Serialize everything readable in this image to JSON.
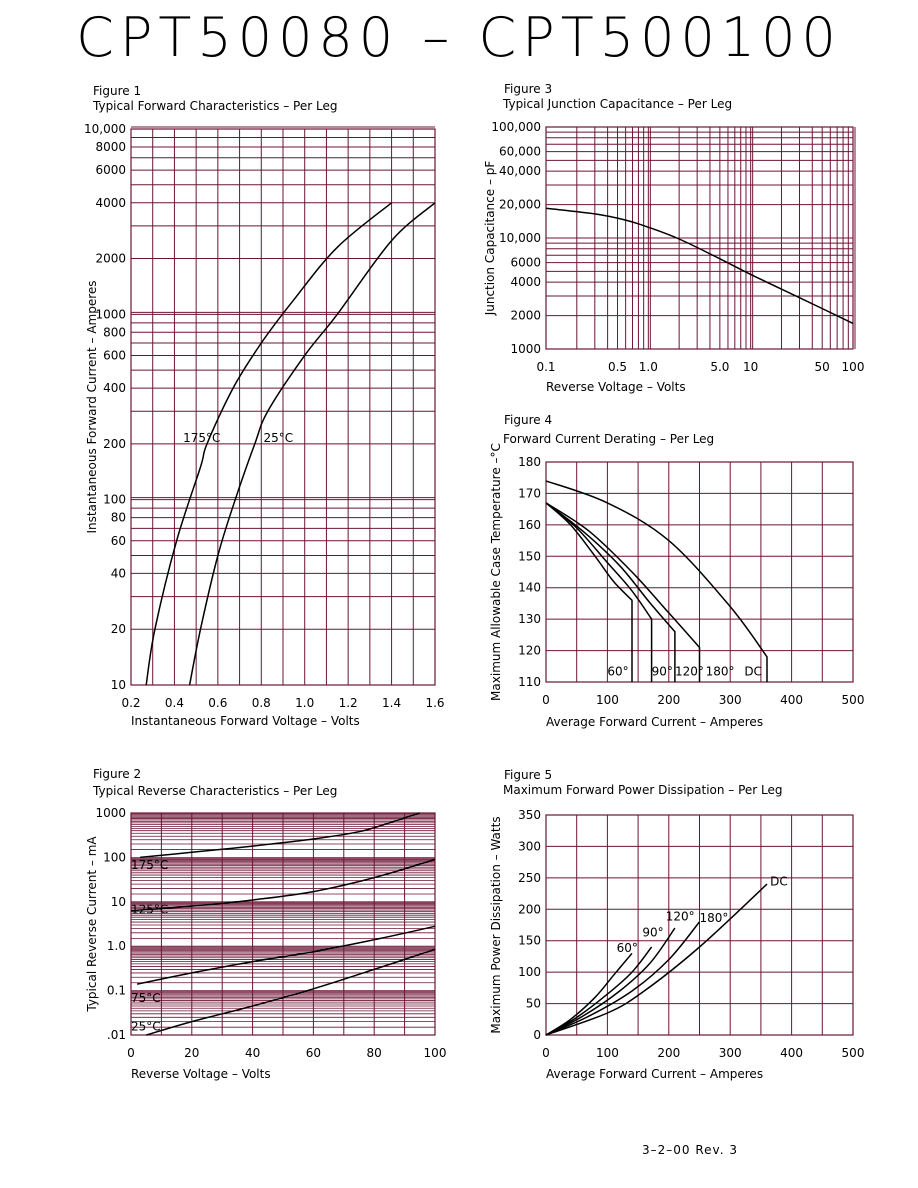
{
  "page_title": "CPT50080  –  CPT500100",
  "footer": "3–2–00   Rev. 3",
  "chart_data": [
    {
      "id": "fig1",
      "type": "line",
      "figure_label": "Figure 1",
      "title": "Typical Forward Characteristics – Per Leg",
      "xlabel": "Instantaneous Forward Voltage – Volts",
      "ylabel": "Instantaneous Forward Current – Amperes",
      "xlim": [
        0.2,
        1.6
      ],
      "ylim": [
        10,
        10000
      ],
      "yscale": "log",
      "x_ticks": [
        "0.2",
        "0.4",
        "0.6",
        "0.8",
        "1.0",
        "1.2",
        "1.4",
        "1.6"
      ],
      "y_ticks": [
        "10",
        "20",
        "40",
        "60",
        "80",
        "100",
        "200",
        "400",
        "600",
        "800",
        "1000",
        "2000",
        "4000",
        "6000",
        "8000",
        "10,000"
      ],
      "series": [
        {
          "name": "175°C",
          "points": [
            [
              0.27,
              10
            ],
            [
              0.31,
              20
            ],
            [
              0.41,
              60
            ],
            [
              0.52,
              150
            ],
            [
              0.55,
              200
            ],
            [
              0.67,
              400
            ],
            [
              0.8,
              700
            ],
            [
              0.95,
              1200
            ],
            [
              1.15,
              2300
            ],
            [
              1.4,
              4000
            ]
          ]
        },
        {
          "name": "25°C",
          "points": [
            [
              0.47,
              10
            ],
            [
              0.52,
              20
            ],
            [
              0.6,
              50
            ],
            [
              0.68,
              100
            ],
            [
              0.77,
              200
            ],
            [
              0.83,
              300
            ],
            [
              1.0,
              600
            ],
            [
              1.15,
              1000
            ],
            [
              1.4,
              2500
            ],
            [
              1.6,
              4000
            ]
          ]
        }
      ],
      "annotations": [
        {
          "text": "175°C",
          "x": 0.44,
          "y": 205
        },
        {
          "text": "25°C",
          "x": 0.81,
          "y": 205
        }
      ]
    },
    {
      "id": "fig2",
      "type": "line",
      "figure_label": "Figure 2",
      "title": "Typical Reverse Characteristics – Per Leg",
      "xlabel": "Reverse Voltage – Volts",
      "ylabel": "Typical Reverse Current – mA",
      "xlim": [
        0,
        100
      ],
      "ylim": [
        0.01,
        1000
      ],
      "yscale": "log",
      "x_ticks": [
        "0",
        "20",
        "40",
        "60",
        "80",
        "100"
      ],
      "y_ticks": [
        ".01",
        "0.1",
        "1.0",
        "10",
        "100",
        "1000"
      ],
      "series": [
        {
          "name": "175°C",
          "points": [
            [
              3,
              100
            ],
            [
              20,
              130
            ],
            [
              40,
              180
            ],
            [
              60,
              260
            ],
            [
              75,
              380
            ],
            [
              85,
              600
            ],
            [
              95,
              1000
            ]
          ]
        },
        {
          "name": "125°C",
          "points": [
            [
              0,
              6.3
            ],
            [
              20,
              8
            ],
            [
              40,
              11
            ],
            [
              60,
              17
            ],
            [
              80,
              35
            ],
            [
              100,
              90
            ]
          ]
        },
        {
          "name": "75°C",
          "points": [
            [
              2,
              0.14
            ],
            [
              20,
              0.25
            ],
            [
              40,
              0.45
            ],
            [
              60,
              0.75
            ],
            [
              80,
              1.4
            ],
            [
              100,
              2.8
            ]
          ]
        },
        {
          "name": "25°C",
          "points": [
            [
              5,
              0.01
            ],
            [
              20,
              0.02
            ],
            [
              40,
              0.045
            ],
            [
              60,
              0.11
            ],
            [
              80,
              0.3
            ],
            [
              100,
              0.85
            ]
          ]
        }
      ],
      "annotations": [
        {
          "text": "175°C",
          "x": 0,
          "y": 55
        },
        {
          "text": "125°C",
          "x": 0,
          "y": 5.5
        },
        {
          "text": "75°C",
          "x": 0,
          "y": 0.055
        },
        {
          "text": "25°C",
          "x": 0,
          "y": 0.0125
        }
      ]
    },
    {
      "id": "fig3",
      "type": "line",
      "figure_label": "Figure 3",
      "title": "Typical Junction Capacitance – Per Leg",
      "xlabel": "Reverse Voltage – Volts",
      "ylabel": "Junction Capacitance – pF",
      "xlim": [
        0.1,
        100
      ],
      "ylim": [
        1000,
        100000
      ],
      "xscale": "log",
      "yscale": "log",
      "x_ticks": [
        "0.1",
        "0.5",
        "1.0",
        "5.0",
        "10",
        "50",
        "100"
      ],
      "y_ticks": [
        "1000",
        "2000",
        "4000",
        "6000",
        "10,000",
        "20,000",
        "40,000",
        "60,000",
        "100,000"
      ],
      "series": [
        {
          "name": "",
          "points": [
            [
              0.1,
              18500
            ],
            [
              0.3,
              16500
            ],
            [
              0.6,
              14500
            ],
            [
              1.0,
              12500
            ],
            [
              2.0,
              9800
            ],
            [
              5.0,
              6500
            ],
            [
              10,
              4700
            ],
            [
              30,
              2900
            ],
            [
              100,
              1700
            ]
          ]
        }
      ]
    },
    {
      "id": "fig4",
      "type": "line",
      "figure_label": "Figure 4",
      "title": "Forward Current Derating – Per Leg",
      "xlabel": "Average Forward Current – Amperes",
      "ylabel": "Maximum Allowable Case Temperature –°C",
      "xlim": [
        0,
        500
      ],
      "ylim": [
        110,
        180
      ],
      "x_ticks": [
        "0",
        "100",
        "200",
        "300",
        "400",
        "500"
      ],
      "y_ticks": [
        "110",
        "120",
        "130",
        "140",
        "150",
        "160",
        "170",
        "180"
      ],
      "series": [
        {
          "name": "60°",
          "points": [
            [
              0,
              167
            ],
            [
              40,
              160
            ],
            [
              80,
              150
            ],
            [
              110,
              142
            ],
            [
              140,
              136
            ],
            [
              140,
              110
            ]
          ]
        },
        {
          "name": "90°",
          "points": [
            [
              0,
              167
            ],
            [
              50,
              159
            ],
            [
              100,
              148
            ],
            [
              140,
              139
            ],
            [
              172,
              130
            ],
            [
              172,
              110
            ]
          ]
        },
        {
          "name": "120°",
          "points": [
            [
              0,
              167
            ],
            [
              60,
              158
            ],
            [
              120,
              147
            ],
            [
              170,
              135
            ],
            [
              210,
              126
            ],
            [
              210,
              110
            ]
          ]
        },
        {
          "name": "180°",
          "points": [
            [
              0,
              167
            ],
            [
              70,
              158
            ],
            [
              140,
              145
            ],
            [
              200,
              132
            ],
            [
              250,
              121
            ],
            [
              250,
              110
            ]
          ]
        },
        {
          "name": "DC",
          "points": [
            [
              0,
              174
            ],
            [
              100,
              167
            ],
            [
              200,
              155
            ],
            [
              300,
              134
            ],
            [
              360,
              118
            ],
            [
              360,
              110
            ]
          ]
        }
      ],
      "annotations": [
        {
          "text": "60°",
          "x": 100,
          "y": 112
        },
        {
          "text": "90°",
          "x": 172,
          "y": 112
        },
        {
          "text": "120°",
          "x": 210,
          "y": 112
        },
        {
          "text": "180°",
          "x": 260,
          "y": 112
        },
        {
          "text": "DC",
          "x": 323,
          "y": 112
        }
      ]
    },
    {
      "id": "fig5",
      "type": "line",
      "figure_label": "Figure 5",
      "title": "Maximum Forward Power Dissipation – Per Leg",
      "xlabel": "Average Forward Current – Amperes",
      "ylabel": "Maximum Power Dissipation – Watts",
      "xlim": [
        0,
        500
      ],
      "ylim": [
        0,
        350
      ],
      "x_ticks": [
        "0",
        "100",
        "200",
        "300",
        "400",
        "500"
      ],
      "y_ticks": [
        "0",
        "50",
        "100",
        "150",
        "200",
        "250",
        "300",
        "350"
      ],
      "series": [
        {
          "name": "60°",
          "points": [
            [
              0,
              0
            ],
            [
              40,
              25
            ],
            [
              80,
              60
            ],
            [
              110,
              95
            ],
            [
              140,
              130
            ]
          ]
        },
        {
          "name": "90°",
          "points": [
            [
              0,
              0
            ],
            [
              50,
              28
            ],
            [
              100,
              65
            ],
            [
              140,
              100
            ],
            [
              172,
              140
            ]
          ]
        },
        {
          "name": "120°",
          "points": [
            [
              0,
              0
            ],
            [
              60,
              30
            ],
            [
              120,
              70
            ],
            [
              170,
              115
            ],
            [
              210,
              170
            ]
          ]
        },
        {
          "name": "180°",
          "points": [
            [
              0,
              0
            ],
            [
              70,
              30
            ],
            [
              140,
              70
            ],
            [
              200,
              120
            ],
            [
              250,
              180
            ]
          ]
        },
        {
          "name": "DC",
          "points": [
            [
              0,
              0
            ],
            [
              100,
              35
            ],
            [
              160,
              70
            ],
            [
              250,
              140
            ],
            [
              360,
              240
            ]
          ]
        }
      ],
      "annotations": [
        {
          "text": "60°",
          "x": 115,
          "y": 132
        },
        {
          "text": "90°",
          "x": 157,
          "y": 157
        },
        {
          "text": "120°",
          "x": 195,
          "y": 182
        },
        {
          "text": "180°",
          "x": 250,
          "y": 180
        },
        {
          "text": "DC",
          "x": 365,
          "y": 238
        }
      ]
    }
  ]
}
